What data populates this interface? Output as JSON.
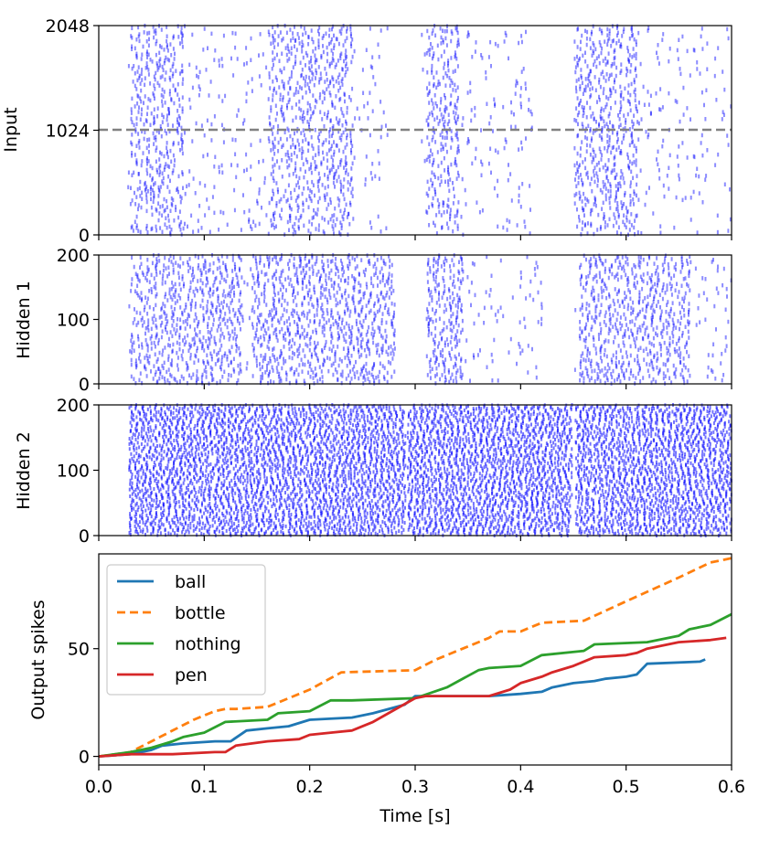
{
  "chart_data": [
    {
      "type": "scatter",
      "name": "input-raster",
      "ylabel": "Input",
      "ylim": [
        0,
        2048
      ],
      "yticks": [
        "0",
        "1024",
        "2048"
      ],
      "xlim": [
        0,
        0.6
      ],
      "divider": {
        "value": 1024,
        "style": "dashed",
        "color": "#808080"
      },
      "marker_color": "#0000ff",
      "activity_bursts_s": [
        [
          0.03,
          0.08
        ],
        [
          0.16,
          0.24
        ],
        [
          0.31,
          0.34
        ],
        [
          0.45,
          0.51
        ]
      ],
      "idle_gaps_s": [
        [
          0.0,
          0.025
        ],
        [
          0.275,
          0.305
        ],
        [
          0.41,
          0.45
        ]
      ]
    },
    {
      "type": "scatter",
      "name": "hidden1-raster",
      "ylabel": "Hidden 1",
      "ylim": [
        0,
        200
      ],
      "yticks": [
        "0",
        "100",
        "200"
      ],
      "xlim": [
        0,
        0.6
      ],
      "marker_color": "#0000ff",
      "activity_bursts_s": [
        [
          0.03,
          0.135
        ],
        [
          0.145,
          0.28
        ],
        [
          0.31,
          0.345
        ],
        [
          0.455,
          0.56
        ]
      ],
      "idle_gaps_s": [
        [
          0.0,
          0.028
        ],
        [
          0.28,
          0.31
        ],
        [
          0.42,
          0.45
        ]
      ]
    },
    {
      "type": "scatter",
      "name": "hidden2-raster",
      "ylabel": "Hidden 2",
      "ylim": [
        0,
        200
      ],
      "yticks": [
        "0",
        "100",
        "200"
      ],
      "xlim": [
        0,
        0.6
      ],
      "marker_color": "#0000ff",
      "activity_bursts_s": [
        [
          0.03,
          0.6
        ]
      ],
      "idle_gaps_s": [
        [
          0.0,
          0.028
        ],
        [
          0.29,
          0.292
        ],
        [
          0.448,
          0.451
        ]
      ]
    },
    {
      "type": "line",
      "name": "output-spikes",
      "title": "",
      "xlabel": "Time [s]",
      "ylabel": "Output spikes",
      "xlim": [
        0,
        0.6
      ],
      "ylim": [
        -4,
        94
      ],
      "xticks": [
        "0.0",
        "0.1",
        "0.2",
        "0.3",
        "0.4",
        "0.5",
        "0.6"
      ],
      "yticks": [
        "0",
        "50"
      ],
      "legend_position": "top-left",
      "series": [
        {
          "name": "ball",
          "color": "#1f77b4",
          "dash": "solid",
          "x": [
            0,
            0.03,
            0.05,
            0.06,
            0.08,
            0.11,
            0.125,
            0.14,
            0.16,
            0.18,
            0.2,
            0.24,
            0.26,
            0.29,
            0.3,
            0.37,
            0.4,
            0.42,
            0.43,
            0.45,
            0.47,
            0.48,
            0.5,
            0.51,
            0.52,
            0.57,
            0.575
          ],
          "y": [
            0,
            1,
            3,
            5,
            6,
            7,
            7,
            12,
            13,
            14,
            17,
            18,
            20,
            24,
            28,
            28,
            29,
            30,
            32,
            34,
            35,
            36,
            37,
            38,
            43,
            44,
            45
          ]
        },
        {
          "name": "bottle",
          "color": "#ff7f0e",
          "dash": "dashed",
          "x": [
            0,
            0.03,
            0.05,
            0.07,
            0.09,
            0.11,
            0.12,
            0.13,
            0.16,
            0.2,
            0.23,
            0.3,
            0.32,
            0.37,
            0.38,
            0.4,
            0.42,
            0.46,
            0.5,
            0.55,
            0.58,
            0.6
          ],
          "y": [
            0,
            2,
            7,
            12,
            17,
            21,
            22,
            22,
            23,
            31,
            39,
            40,
            45,
            55,
            58,
            58,
            62,
            63,
            72,
            83,
            90,
            92
          ]
        },
        {
          "name": "nothing",
          "color": "#2ca02c",
          "dash": "solid",
          "x": [
            0,
            0.03,
            0.05,
            0.07,
            0.08,
            0.1,
            0.12,
            0.16,
            0.17,
            0.2,
            0.22,
            0.24,
            0.3,
            0.33,
            0.36,
            0.37,
            0.4,
            0.42,
            0.46,
            0.47,
            0.52,
            0.55,
            0.56,
            0.58,
            0.6
          ],
          "y": [
            0,
            2,
            4,
            7,
            9,
            11,
            16,
            17,
            20,
            21,
            26,
            26,
            27,
            32,
            40,
            41,
            42,
            47,
            49,
            52,
            53,
            56,
            59,
            61,
            66
          ]
        },
        {
          "name": "pen",
          "color": "#d62728",
          "dash": "solid",
          "x": [
            0,
            0.03,
            0.07,
            0.11,
            0.12,
            0.13,
            0.16,
            0.19,
            0.2,
            0.22,
            0.24,
            0.26,
            0.3,
            0.31,
            0.37,
            0.39,
            0.4,
            0.42,
            0.43,
            0.45,
            0.47,
            0.5,
            0.51,
            0.52,
            0.55,
            0.58,
            0.595
          ],
          "y": [
            0,
            1,
            1,
            2,
            2,
            5,
            7,
            8,
            10,
            11,
            12,
            16,
            27,
            28,
            28,
            31,
            34,
            37,
            39,
            42,
            46,
            47,
            48,
            50,
            53,
            54,
            55
          ]
        }
      ]
    }
  ]
}
